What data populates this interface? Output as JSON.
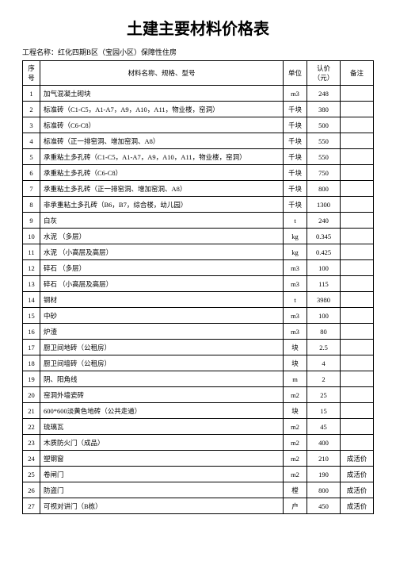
{
  "title": "土建主要材料价格表",
  "project_label": "工程名称：",
  "project_name": "红化四期B区（宝园小区）保障性住房",
  "headers": {
    "idx": "序号",
    "name": "材料名称、规格、型号",
    "unit": "单位",
    "price": "认价（元）",
    "note": "备注"
  },
  "rows": [
    {
      "idx": "1",
      "name": "加气混凝土砌块",
      "unit": "m3",
      "price": "248",
      "note": ""
    },
    {
      "idx": "2",
      "name": "标准砖（C1-C5，A1-A7，A9，A10，A11，物业楼，窑洞）",
      "unit": "千块",
      "price": "380",
      "note": ""
    },
    {
      "idx": "3",
      "name": "标准砖（C6-C8）",
      "unit": "千块",
      "price": "500",
      "note": ""
    },
    {
      "idx": "4",
      "name": "标准砖（正一排窑洞、增加窑洞、A8）",
      "unit": "千块",
      "price": "550",
      "note": ""
    },
    {
      "idx": "5",
      "name": "承重粘土多孔砖（C1-C5，A1-A7，A9，A10，A11，物业楼，窑洞）",
      "unit": "千块",
      "price": "550",
      "note": ""
    },
    {
      "idx": "6",
      "name": "承重粘土多孔砖（C6-C8）",
      "unit": "千块",
      "price": "750",
      "note": ""
    },
    {
      "idx": "7",
      "name": "承重粘土多孔砖（正一排窑洞、增加窑洞、A8）",
      "unit": "千块",
      "price": "800",
      "note": ""
    },
    {
      "idx": "8",
      "name": "非承重粘土多孔砖（B6，B7，综合楼，幼儿园）",
      "unit": "千块",
      "price": "1300",
      "note": ""
    },
    {
      "idx": "9",
      "name": "白灰",
      "unit": "t",
      "price": "240",
      "note": ""
    },
    {
      "idx": "10",
      "name": "水泥 （多层）",
      "unit": "kg",
      "price": "0.345",
      "note": ""
    },
    {
      "idx": "11",
      "name": "水泥 （小高层及高层）",
      "unit": "kg",
      "price": "0.425",
      "note": ""
    },
    {
      "idx": "12",
      "name": "碎石 （多层）",
      "unit": "m3",
      "price": "100",
      "note": ""
    },
    {
      "idx": "13",
      "name": "碎石 （小高层及高层）",
      "unit": "m3",
      "price": "115",
      "note": ""
    },
    {
      "idx": "14",
      "name": "钢材",
      "unit": "t",
      "price": "3980",
      "note": ""
    },
    {
      "idx": "15",
      "name": "中砂",
      "unit": "m3",
      "price": "100",
      "note": ""
    },
    {
      "idx": "16",
      "name": "炉渣",
      "unit": "m3",
      "price": "80",
      "note": ""
    },
    {
      "idx": "17",
      "name": "厨卫间地砖（公租房）",
      "unit": "块",
      "price": "2.5",
      "note": ""
    },
    {
      "idx": "18",
      "name": "厨卫间墙砖（公租房）",
      "unit": "块",
      "price": "4",
      "note": ""
    },
    {
      "idx": "19",
      "name": "阴、阳角线",
      "unit": "m",
      "price": "2",
      "note": ""
    },
    {
      "idx": "20",
      "name": "窑洞外墙瓷砖",
      "unit": "m2",
      "price": "25",
      "note": ""
    },
    {
      "idx": "21",
      "name": "600*600淡黄色地砖（公共走道）",
      "unit": "块",
      "price": "15",
      "note": ""
    },
    {
      "idx": "22",
      "name": "琉璃瓦",
      "unit": "m2",
      "price": "45",
      "note": ""
    },
    {
      "idx": "23",
      "name": "木质防火门（成品）",
      "unit": "m2",
      "price": "400",
      "note": ""
    },
    {
      "idx": "24",
      "name": "塑钢窗",
      "unit": "m2",
      "price": "210",
      "note": "成活价"
    },
    {
      "idx": "25",
      "name": "卷闸门",
      "unit": "m2",
      "price": "190",
      "note": "成活价"
    },
    {
      "idx": "26",
      "name": "防盗门",
      "unit": "樘",
      "price": "800",
      "note": "成活价"
    },
    {
      "idx": "27",
      "name": "可视对讲门（B栋）",
      "unit": "户",
      "price": "450",
      "note": "成活价"
    }
  ]
}
